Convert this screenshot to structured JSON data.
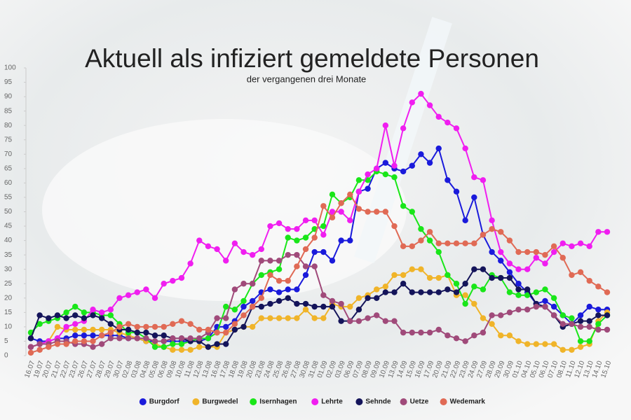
{
  "chart_data": {
    "type": "line",
    "title": "Aktuell als infiziert gemeldete Personen",
    "subtitle": "der vergangenen drei Monate",
    "categories": [
      "16.07",
      "19.07",
      "20.07",
      "21.07",
      "22.07",
      "23.07",
      "26.07",
      "27.07",
      "28.07",
      "29.07",
      "30.07",
      "02.08",
      "03.08",
      "04.08",
      "05.08",
      "06.08",
      "09.08",
      "10.08",
      "11.08",
      "12.08",
      "13.08",
      "16.08",
      "17.08",
      "18.08",
      "19.08",
      "20.08",
      "23.08",
      "24.08",
      "25.08",
      "26.08",
      "27.08",
      "30.08",
      "31.08",
      "01.09",
      "02.09",
      "03.09",
      "06.09",
      "07.09",
      "08.09",
      "09.09",
      "10.09",
      "13.09",
      "14.09",
      "15.09",
      "16.09",
      "17.09",
      "20.09",
      "21.09",
      "22.09",
      "23.09",
      "24.09",
      "27.09",
      "28.09",
      "29.09",
      "30.09",
      "01.10",
      "04.10",
      "05.10",
      "06.10",
      "07.10",
      "08.10",
      "11.10",
      "12.10",
      "13.10",
      "14.10",
      "15.10"
    ],
    "ylim": [
      0,
      100
    ],
    "yticks": [
      0,
      5,
      10,
      15,
      20,
      25,
      30,
      35,
      40,
      45,
      50,
      55,
      60,
      65,
      70,
      75,
      80,
      85,
      90,
      95,
      100
    ],
    "grid": false,
    "legend": "bottom",
    "series": [
      {
        "name": "Burgdorf",
        "color": "#1a1adb",
        "values": [
          6,
          5,
          5,
          6,
          6,
          7,
          7,
          7,
          7,
          7,
          7,
          6,
          6,
          5,
          5,
          5,
          5,
          5,
          5,
          5,
          6,
          10,
          10,
          12,
          17,
          19,
          22,
          23,
          22,
          23,
          23,
          28,
          36,
          36,
          33,
          40,
          40,
          57,
          58,
          65,
          67,
          65,
          64,
          66,
          70,
          67,
          72,
          61,
          57,
          47,
          55,
          42,
          36,
          33,
          29,
          25,
          22,
          18,
          19,
          17,
          14,
          11,
          14,
          17,
          16,
          16
        ]
      },
      {
        "name": "Burgwedel",
        "color": "#f0b429",
        "values": [
          3,
          4,
          5,
          10,
          9,
          9,
          9,
          9,
          9,
          9,
          8,
          7,
          6,
          5,
          4,
          3,
          2,
          2,
          2,
          3,
          3,
          3,
          8,
          9,
          10,
          10,
          13,
          13,
          13,
          13,
          13,
          16,
          13,
          13,
          18,
          17,
          17,
          20,
          21,
          23,
          24,
          28,
          28,
          30,
          30,
          27,
          27,
          28,
          21,
          21,
          18,
          13,
          11,
          7,
          7,
          5,
          4,
          4,
          4,
          4,
          2,
          2,
          3,
          4,
          12,
          15
        ]
      },
      {
        "name": "Isernhagen",
        "color": "#19e619",
        "values": [
          8,
          11,
          12,
          13,
          15,
          17,
          15,
          15,
          14,
          14,
          11,
          8,
          8,
          6,
          3,
          3,
          4,
          4,
          5,
          6,
          6,
          8,
          17,
          16,
          19,
          25,
          28,
          29,
          30,
          41,
          40,
          41,
          44,
          45,
          56,
          53,
          55,
          61,
          61,
          64,
          63,
          62,
          52,
          50,
          44,
          40,
          36,
          28,
          25,
          18,
          24,
          23,
          28,
          27,
          22,
          21,
          21,
          22,
          23,
          20,
          14,
          13,
          5,
          5,
          11,
          14
        ]
      },
      {
        "name": "Lehrte",
        "color": "#f01ef0",
        "values": [
          3,
          4,
          5,
          6,
          10,
          11,
          12,
          16,
          15,
          16,
          20,
          21,
          22,
          23,
          20,
          25,
          26,
          27,
          32,
          40,
          38,
          37,
          33,
          39,
          36,
          35,
          37,
          45,
          46,
          44,
          44,
          47,
          47,
          42,
          50,
          50,
          47,
          57,
          63,
          65,
          80,
          66,
          79,
          88,
          91,
          87,
          83,
          81,
          79,
          72,
          62,
          61,
          47,
          36,
          32,
          30,
          30,
          34,
          32,
          36,
          39,
          38,
          39,
          38,
          43,
          43
        ]
      },
      {
        "name": "Sehnde",
        "color": "#14145a",
        "values": [
          6,
          14,
          13,
          14,
          13,
          14,
          13,
          14,
          13,
          11,
          9,
          9,
          8,
          8,
          7,
          7,
          6,
          6,
          5,
          5,
          3,
          4,
          4,
          9,
          10,
          17,
          17,
          18,
          19,
          20,
          18,
          18,
          17,
          17,
          17,
          12,
          12,
          16,
          20,
          20,
          22,
          22,
          25,
          22,
          22,
          22,
          22,
          23,
          22,
          25,
          30,
          30,
          27,
          27,
          27,
          23,
          23,
          18,
          17,
          14,
          10,
          11,
          12,
          12,
          14,
          14
        ]
      },
      {
        "name": "Uetze",
        "color": "#a04a7a",
        "values": [
          3,
          4,
          4,
          5,
          5,
          4,
          4,
          3,
          4,
          6,
          6,
          6,
          6,
          6,
          5,
          5,
          6,
          6,
          6,
          6,
          8,
          13,
          13,
          23,
          25,
          25,
          33,
          33,
          33,
          35,
          35,
          31,
          31,
          21,
          19,
          18,
          12,
          12,
          13,
          14,
          12,
          12,
          8,
          8,
          8,
          8,
          9,
          7,
          6,
          5,
          7,
          8,
          14,
          14,
          15,
          16,
          16,
          17,
          17,
          14,
          11,
          11,
          10,
          10,
          9,
          9
        ]
      },
      {
        "name": "Wedemark",
        "color": "#e06a55",
        "values": [
          1,
          2,
          3,
          4,
          4,
          5,
          5,
          5,
          7,
          8,
          10,
          11,
          10,
          10,
          10,
          10,
          11,
          12,
          11,
          9,
          9,
          8,
          8,
          11,
          14,
          17,
          20,
          28,
          26,
          26,
          31,
          37,
          41,
          52,
          48,
          53,
          56,
          51,
          50,
          50,
          50,
          45,
          38,
          38,
          40,
          43,
          39,
          39,
          39,
          39,
          39,
          42,
          44,
          43,
          40,
          36,
          36,
          36,
          35,
          38,
          34,
          28,
          29,
          26,
          24,
          22
        ]
      }
    ]
  }
}
